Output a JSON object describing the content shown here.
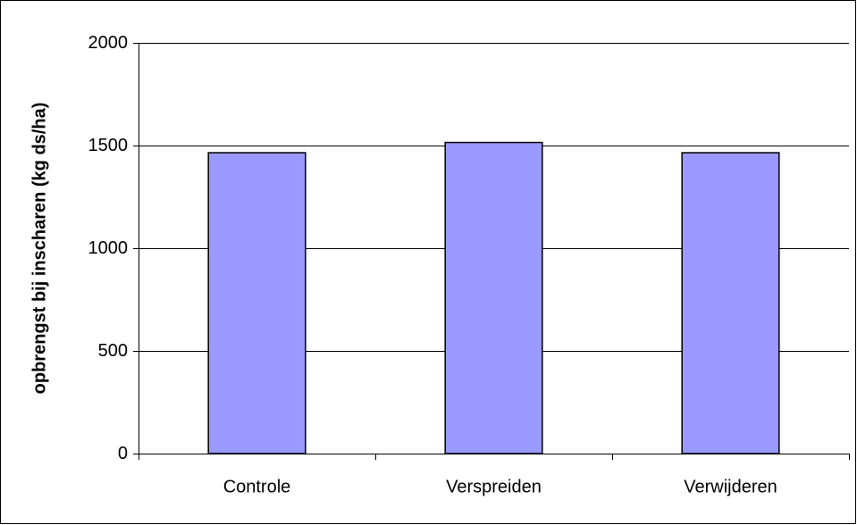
{
  "chart_data": {
    "type": "bar",
    "ylabel": "opbrengst bij inscharen (kg ds/ha)",
    "categories": [
      "Controle",
      "Verspreiden",
      "Verwijderen"
    ],
    "values": [
      1465,
      1515,
      1465
    ],
    "color": "#9999ff",
    "ylim": [
      0,
      2000
    ],
    "yticks": [
      0,
      500,
      1000,
      1500,
      2000
    ],
    "grid": true
  }
}
